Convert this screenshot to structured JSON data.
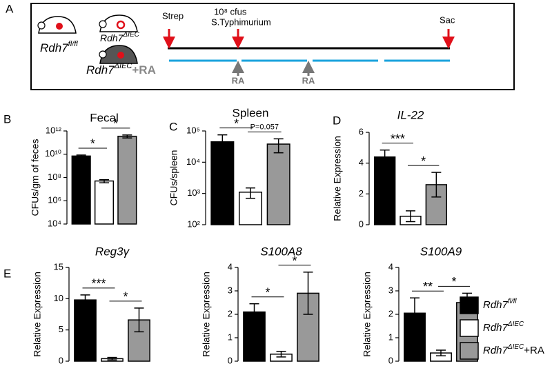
{
  "panel_a": {
    "panel": "A",
    "mice": [
      {
        "text": "Rdh7",
        "sup": "fl/fl"
      },
      {
        "text": "Rdh7",
        "sup": "ΔIEC"
      },
      {
        "text": "Rdh7",
        "sup": "ΔIEC",
        "suffix": "+RA"
      }
    ],
    "events": [
      "Strep",
      "10⁸ cfus",
      "S.Typhimurium",
      "Sac"
    ],
    "treatments": [
      "RA",
      "RA"
    ]
  },
  "legend": {
    "names": [
      {
        "text": "Rdh7",
        "sup": "fl/fl"
      },
      {
        "text": "Rdh7",
        "sup": "ΔIEC"
      },
      {
        "text": "Rdh7",
        "sup": "ΔIEC",
        "suffix": "+RA"
      }
    ],
    "colors": [
      "#000000",
      "#ffffff",
      "#999999"
    ]
  },
  "chart_data": [
    {
      "type": "bar",
      "panel": "B",
      "title": "Fecal",
      "y_label": "CFUs/gm of feces",
      "log_scale": true,
      "values": [
        7000000000,
        50000000,
        350000000000
      ],
      "errors": [
        1500000000,
        15000000,
        100000000000
      ],
      "ylim": [
        10000,
        1000000000000
      ],
      "yticks": [
        {
          "value": 10000,
          "label": "10⁴"
        },
        {
          "value": 1000000,
          "label": "10⁶"
        },
        {
          "value": 100000000,
          "label": "10⁸"
        },
        {
          "value": 10000000000,
          "label": "10¹⁰"
        },
        {
          "value": 1000000000000,
          "label": "10¹²"
        }
      ],
      "annotations": [
        "*",
        "*"
      ]
    },
    {
      "type": "bar",
      "panel": "C",
      "title": "Spleen",
      "y_label": "CFUs/spleen",
      "log_scale": true,
      "values": [
        45000,
        1100,
        38000
      ],
      "errors": [
        30000,
        400,
        18000
      ],
      "ylim": [
        100,
        100000
      ],
      "yticks": [
        {
          "value": 100,
          "label": "10²"
        },
        {
          "value": 1000,
          "label": "10³"
        },
        {
          "value": 10000,
          "label": "10⁴"
        },
        {
          "value": 100000,
          "label": "10⁵"
        }
      ],
      "annotations": [
        "*",
        "P=0.057"
      ]
    },
    {
      "type": "bar",
      "panel": "D",
      "title": "IL-22",
      "title_italic": true,
      "y_label": "Relative Expression",
      "log_scale": false,
      "values": [
        4.4,
        0.55,
        2.6
      ],
      "errors": [
        0.45,
        0.35,
        0.8
      ],
      "ylim": [
        0,
        6
      ],
      "yticks": [
        0,
        2,
        4,
        6
      ],
      "annotations": [
        "***",
        "*"
      ]
    },
    {
      "type": "bar",
      "panel": "E",
      "title": "Reg3γ",
      "title_italic": true,
      "y_label": "Relative Expression",
      "log_scale": false,
      "values": [
        9.8,
        0.4,
        6.6
      ],
      "errors": [
        0.8,
        0.2,
        1.9
      ],
      "ylim": [
        0,
        15
      ],
      "yticks": [
        0,
        5,
        10,
        15
      ],
      "annotations": [
        "***",
        "*"
      ]
    },
    {
      "type": "bar",
      "title": "S100A8",
      "title_italic": true,
      "y_label": "Relative Expression",
      "log_scale": false,
      "values": [
        2.1,
        0.3,
        2.9
      ],
      "errors": [
        0.35,
        0.12,
        0.9
      ],
      "ylim": [
        0,
        4
      ],
      "yticks": [
        0,
        1,
        2,
        3,
        4
      ],
      "annotations": [
        "*",
        "*"
      ]
    },
    {
      "type": "bar",
      "title": "S100A9",
      "title_italic": true,
      "y_label": "Relative Expression",
      "log_scale": false,
      "values": [
        2.05,
        0.35,
        2.5
      ],
      "errors": [
        0.65,
        0.12,
        0.4
      ],
      "ylim": [
        0,
        4
      ],
      "yticks": [
        0,
        1,
        2,
        3,
        4
      ],
      "annotations": [
        "**",
        "*"
      ]
    }
  ]
}
